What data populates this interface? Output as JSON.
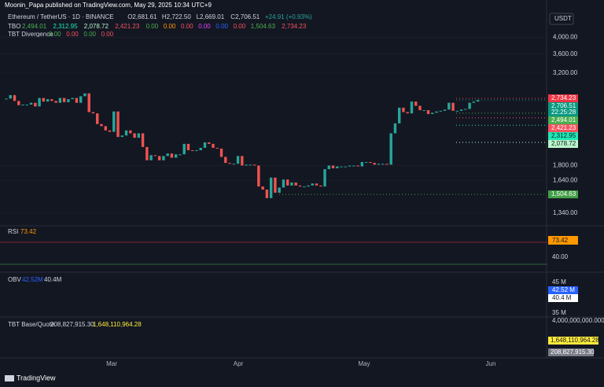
{
  "header": {
    "published": "Moonin_Papa published on TradingView.com, May 29, 2025 10:34 UTC+9",
    "symbol": "Ethereum / TetherUS · 1D · BINANCE",
    "ohlc": [
      "O2,681.61",
      "H2,722.50",
      "L2,669.01",
      "C2,706.51",
      "+24.91 (+0.93%)"
    ],
    "tbo": {
      "name": "TBO",
      "values": [
        "2,494.01",
        "2,312.95",
        "2,078.72",
        "2,421.23",
        "0.00",
        "0.00",
        "0.00",
        "0.00",
        "0.00",
        "0.00",
        "1,504.63",
        "2,734.23"
      ]
    },
    "divergence": {
      "name": "TBT Divergence",
      "values": [
        "0.00",
        "0.00",
        "0.00",
        "0.00"
      ]
    },
    "currency": "USDT",
    "footer": "TradingView"
  },
  "chart_data": {
    "type": "candlestick",
    "log_scale": true,
    "up_color": "#26a69a",
    "down_color": "#ef5350",
    "x_labels": [
      "Mar",
      "Apr",
      "May",
      "Jun"
    ],
    "close": [
      2730,
      2790,
      2690,
      2620,
      2630,
      2630,
      2660,
      2600,
      2740,
      2680,
      2720,
      2690,
      2660,
      2740,
      2670,
      2720,
      2740,
      2660,
      2770,
      2820,
      2510,
      2490,
      2330,
      2300,
      2240,
      2220,
      2520,
      2150,
      2170,
      2240,
      2200,
      2140,
      2200,
      2020,
      1860,
      1920,
      1910,
      1860,
      1910,
      1940,
      1890,
      1930,
      1930,
      2060,
      1980,
      1970,
      1980,
      2010,
      2080,
      2060,
      2010,
      2000,
      1900,
      1830,
      1820,
      1820,
      1910,
      1800,
      1810,
      1810,
      1800,
      1580,
      1550,
      1470,
      1670,
      1520,
      1570,
      1650,
      1590,
      1620,
      1590,
      1580,
      1580,
      1590,
      1610,
      1590,
      1580,
      1760,
      1800,
      1770,
      1790,
      1790,
      1790,
      1800,
      1800,
      1790,
      1840,
      1840,
      1830,
      1810,
      1820,
      1820,
      1810,
      2200,
      2340,
      2580,
      2510,
      2490,
      2680,
      2610,
      2540,
      2540,
      2480,
      2500,
      2520,
      2530,
      2550,
      2660,
      2530,
      2530,
      2550,
      2560,
      2660,
      2680,
      2706.51
    ],
    "ylim": [
      1250,
      4800
    ],
    "yticks": [
      {
        "value": 4000,
        "label": "4,000.00"
      },
      {
        "value": 3600,
        "label": "3,600.00"
      },
      {
        "value": 3200,
        "label": "3,200.00"
      },
      {
        "value": 1800,
        "label": "1,800.00"
      },
      {
        "value": 1640,
        "label": "1,640.00"
      },
      {
        "value": 1340,
        "label": "1,340.00"
      }
    ],
    "price_labels": [
      {
        "value": 2734.23,
        "label": "2,734.23",
        "color": "#f23645"
      },
      {
        "value": 2706.51,
        "label": "2,706.51",
        "color": "#089981",
        "timer": "22:25:28"
      },
      {
        "value": 2494.01,
        "label": "2,494.01",
        "color": "#4caf50"
      },
      {
        "value": 2421.23,
        "label": "2,421.23",
        "color": "#f7525f"
      },
      {
        "value": 2312.95,
        "label": "2,312.95",
        "color": "#1de9b6"
      },
      {
        "value": 2078.72,
        "label": "2,078.72",
        "color": "#b9f6ca"
      },
      {
        "value": 1504.63,
        "label": "1,504.63",
        "color": "#43a047"
      }
    ]
  },
  "rsi": {
    "name": "RSI",
    "value": "73.42",
    "ticks": [
      "73.42",
      "40.00"
    ]
  },
  "obv": {
    "name": "OBV",
    "values": [
      "42.52M",
      "40.4M"
    ],
    "ticks": [
      "45 M",
      "42.52 M",
      "40.4 M",
      "35 M"
    ]
  },
  "base_quote": {
    "name": "TBT Base/Quote",
    "values": [
      "208,827,915.30",
      "1,648,110,964.28"
    ],
    "ticks": [
      "4,000,000,000.000",
      "1,648,110,964.28",
      "208,827,915.30"
    ]
  }
}
